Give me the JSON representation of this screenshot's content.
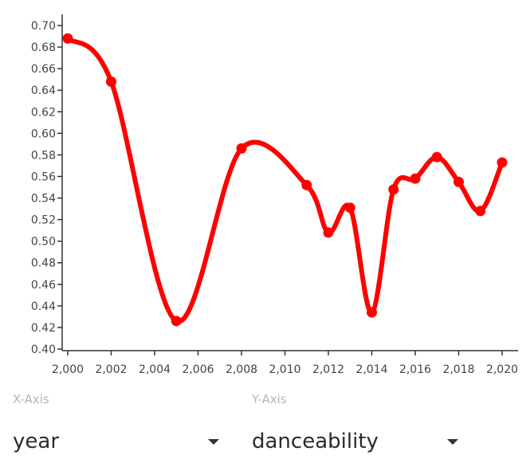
{
  "chart_data": {
    "type": "line",
    "title": "",
    "xlabel": "",
    "ylabel": "",
    "x": [
      2000,
      2002,
      2005,
      2008,
      2011,
      2012,
      2013,
      2014,
      2015,
      2016,
      2017,
      2018,
      2019,
      2020
    ],
    "series": [
      {
        "values": [
          0.688,
          0.648,
          0.426,
          0.586,
          0.552,
          0.508,
          0.531,
          0.434,
          0.548,
          0.558,
          0.578,
          0.555,
          0.528,
          0.573
        ]
      }
    ],
    "xlim": [
      2000,
      2020
    ],
    "ylim": [
      0.4,
      0.7
    ],
    "x_ticks": [
      2000,
      2002,
      2004,
      2006,
      2008,
      2010,
      2012,
      2014,
      2016,
      2018,
      2020
    ],
    "x_tick_labels": [
      "2,000",
      "2,002",
      "2,004",
      "2,006",
      "2,008",
      "2,010",
      "2,012",
      "2,014",
      "2,016",
      "2,018",
      "2,020"
    ],
    "y_ticks": [
      0.4,
      0.42,
      0.44,
      0.46,
      0.48,
      0.5,
      0.52,
      0.54,
      0.56,
      0.58,
      0.6,
      0.62,
      0.64,
      0.66,
      0.68,
      0.7
    ],
    "y_tick_labels": [
      "0.40",
      "0.42",
      "0.44",
      "0.46",
      "0.48",
      "0.50",
      "0.52",
      "0.54",
      "0.56",
      "0.58",
      "0.60",
      "0.62",
      "0.64",
      "0.66",
      "0.68",
      "0.70"
    ],
    "grid": false,
    "line_color": "#ff0000"
  },
  "controls": {
    "x_axis": {
      "caption": "X-Axis",
      "value": "year"
    },
    "y_axis": {
      "caption": "Y-Axis",
      "value": "danceability"
    }
  }
}
